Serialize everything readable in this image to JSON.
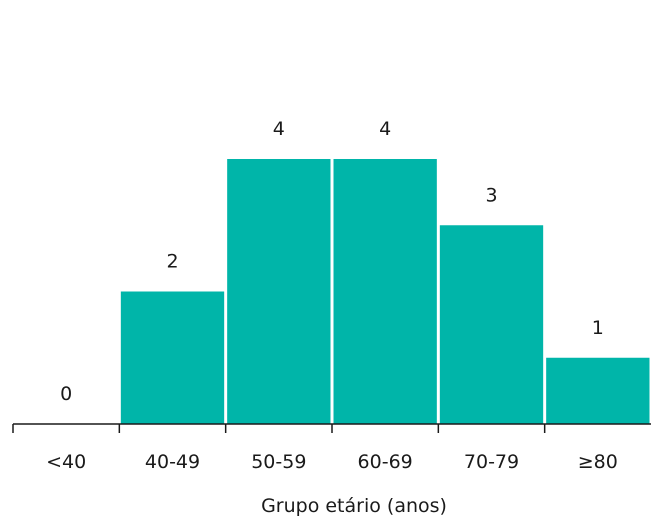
{
  "chart_data": {
    "type": "bar",
    "title": "",
    "xlabel": "Grupo etário (anos)",
    "ylabel": "",
    "categories": [
      "<40",
      "40-49",
      "50-59",
      "60-69",
      "70-79",
      "≥80"
    ],
    "values": [
      0,
      2,
      4,
      4,
      3,
      1
    ],
    "data_labels": [
      "0",
      "2",
      "4",
      "4",
      "3",
      "1"
    ],
    "ylim": [
      0,
      4
    ],
    "grid": false,
    "legend": "none",
    "bar_color": "#00b5a9",
    "axis_color": "#1a1a1a"
  }
}
